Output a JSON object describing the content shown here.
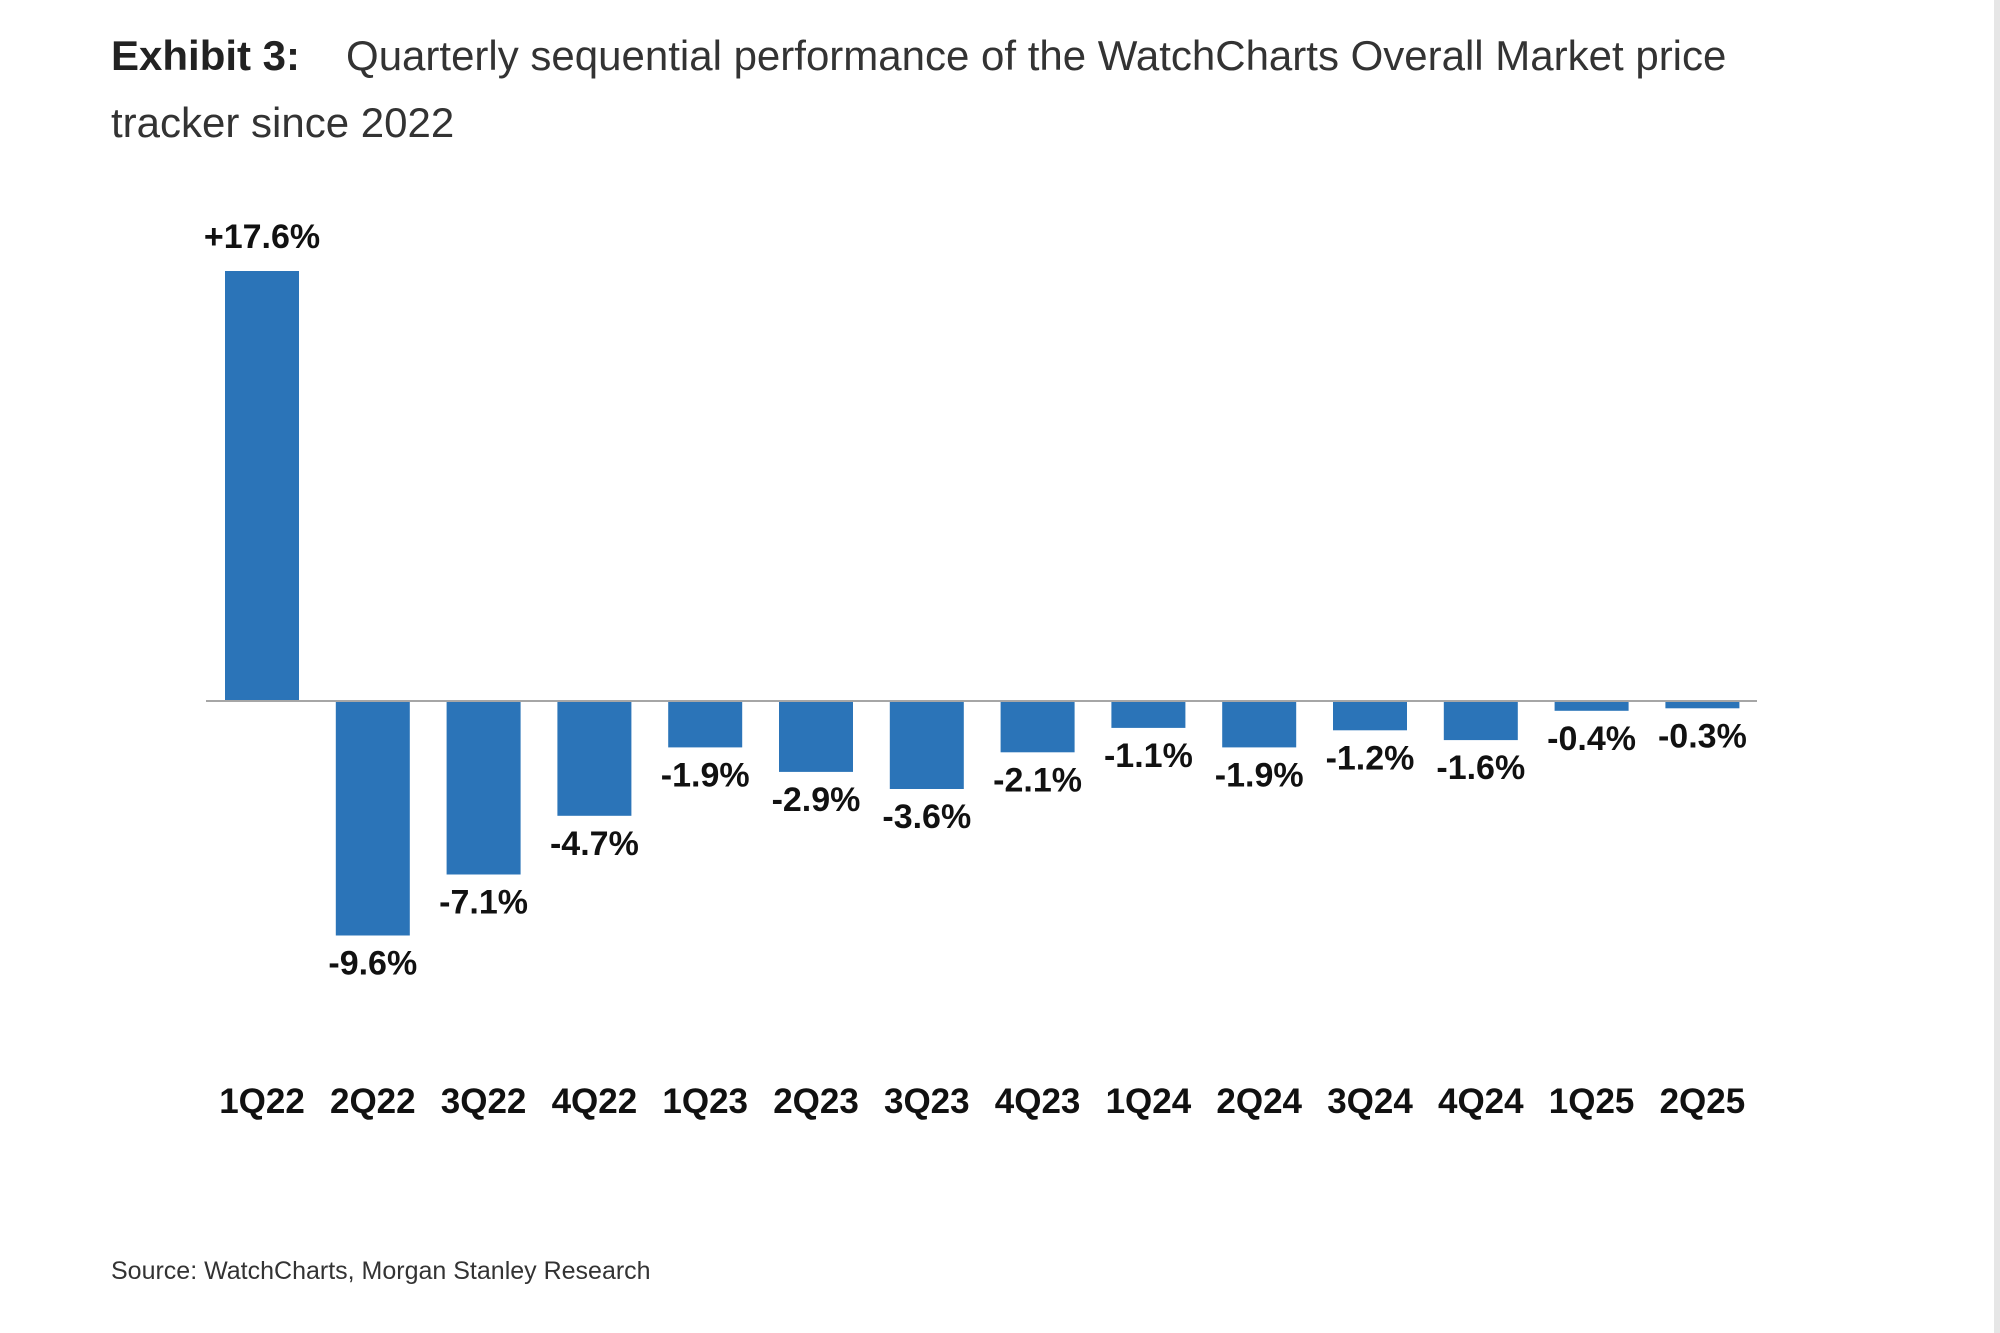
{
  "header": {
    "exhibit_label": "Exhibit 3:",
    "title": "Quarterly sequential performance of the WatchCharts Overall Market price tracker since 2022"
  },
  "footer": {
    "source": "Source: WatchCharts, Morgan Stanley Research"
  },
  "colors": {
    "bar": "#2b74b8",
    "axis": "#a6a6a6",
    "label": "#111111"
  },
  "chart_data": {
    "type": "bar",
    "title": "Quarterly sequential performance of the WatchCharts Overall Market price tracker since 2022",
    "xlabel": "",
    "ylabel": "",
    "categories": [
      "1Q22",
      "2Q22",
      "3Q22",
      "4Q22",
      "1Q23",
      "2Q23",
      "3Q23",
      "4Q23",
      "1Q24",
      "2Q24",
      "3Q24",
      "4Q24",
      "1Q25",
      "2Q25"
    ],
    "values": [
      17.6,
      -9.6,
      -7.1,
      -4.7,
      -1.9,
      -2.9,
      -3.6,
      -2.1,
      -1.1,
      -1.9,
      -1.2,
      -1.6,
      -0.4,
      -0.3
    ],
    "data_labels": [
      "+17.6%",
      "-9.6%",
      "-7.1%",
      "-4.7%",
      "-1.9%",
      "-2.9%",
      "-3.6%",
      "-2.1%",
      "-1.1%",
      "-1.9%",
      "-1.2%",
      "-1.6%",
      "-0.4%",
      "-0.3%"
    ],
    "unit": "%",
    "grid": false,
    "legend": "none",
    "y_axis_visible": false
  }
}
